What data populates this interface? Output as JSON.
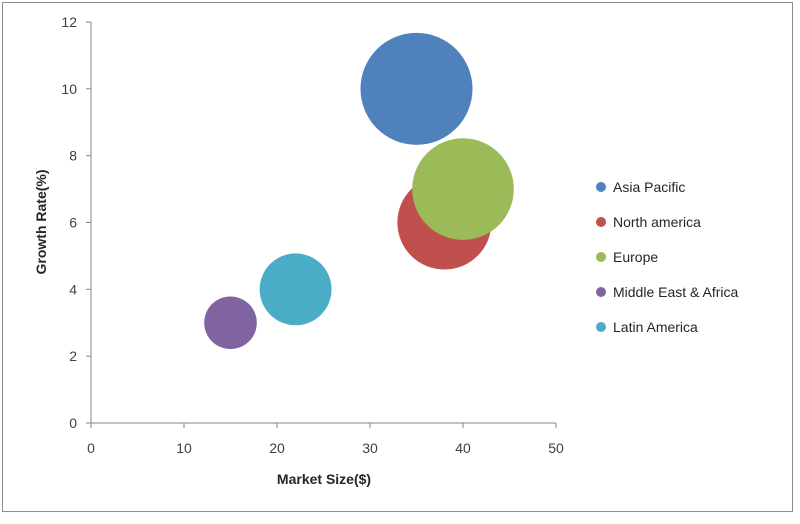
{
  "chart_data": {
    "type": "bubble",
    "title": "",
    "xlabel": "Market Size($)",
    "ylabel": "Growth Rate(%)",
    "xlim": [
      0,
      50
    ],
    "ylim": [
      0,
      12
    ],
    "xticks": [
      0,
      10,
      20,
      30,
      40,
      50
    ],
    "yticks": [
      0,
      2,
      4,
      6,
      8,
      10,
      12
    ],
    "grid": false,
    "legend_position": "right",
    "series": [
      {
        "name": "Asia Pacific",
        "x": 35,
        "y": 10,
        "size": 34,
        "color": "#4f81bd"
      },
      {
        "name": "North america",
        "x": 38,
        "y": 6,
        "size": 24,
        "color": "#c0504d"
      },
      {
        "name": "Europe",
        "x": 40,
        "y": 7,
        "size": 28,
        "color": "#9bbb59"
      },
      {
        "name": "Middle East & Africa",
        "x": 15,
        "y": 3,
        "size": 7.5,
        "color": "#8064a2"
      },
      {
        "name": "Latin America",
        "x": 22,
        "y": 4,
        "size": 14,
        "color": "#4bacc6"
      }
    ],
    "draw_order": [
      0,
      1,
      2,
      3,
      4
    ]
  }
}
